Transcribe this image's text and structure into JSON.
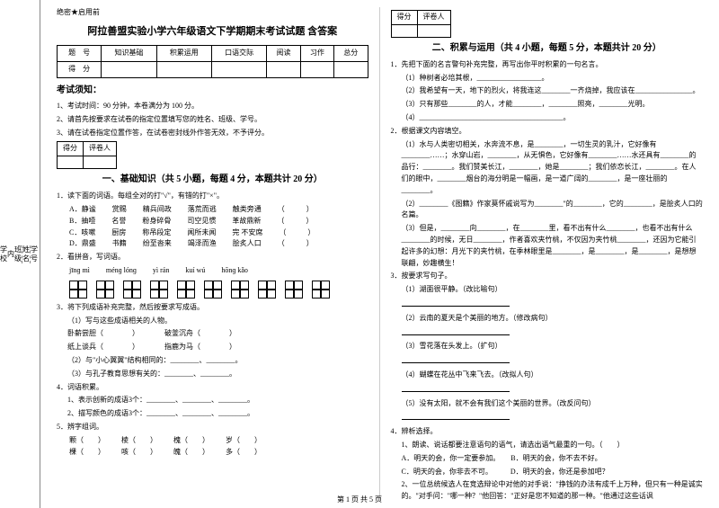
{
  "sidebar": {
    "items": [
      {
        "label1": "学号",
        "label2": ""
      },
      {
        "label1": "姓名",
        "label2": ""
      },
      {
        "label1": "班级",
        "label2": ""
      },
      {
        "label1": "",
        "label2": "内"
      },
      {
        "label1": "学校",
        "label2": ""
      },
      {
        "label1": "",
        "label2": "线"
      },
      {
        "label1": "",
        "label2": "封"
      },
      {
        "label1": "乡镇(街道)",
        "label2": ""
      }
    ]
  },
  "left": {
    "secret": "绝密★启用前",
    "title": "阿拉善盟实验小学六年级语文下学期期末考试试题 含答案",
    "scoreTable": {
      "h0": "题　号",
      "h1": "知识基础",
      "h2": "积累运用",
      "h3": "口语交际",
      "h4": "阅读",
      "h5": "习作",
      "h6": "总分",
      "r0": "得　分"
    },
    "noticeTitle": "考试须知：",
    "notices": [
      "1、考试时间：90 分钟，本卷满分为 100 分。",
      "2、请首先按要求在试卷的指定位置填写您的姓名、班级、学号。",
      "3、请在试卷指定位置作答，在试卷密封线外作答无效，不予评分。"
    ],
    "miniTable": {
      "c0": "得分",
      "c1": "评卷人"
    },
    "section1": "一、基础知识（共 5 小题，每题 4 分，本题共计 20 分）",
    "q1": "1．读下面的词语。每组全对的打\"√\"，有错的打\"×\"。",
    "q1rows": [
      [
        "A．静谧",
        "赏赐",
        "精兵间政",
        "落荒而逃",
        "触类旁通",
        "（　　　）"
      ],
      [
        "B．抽噎",
        "名誉",
        "粉身碎骨",
        "司空见惯",
        "革故鼎新",
        "（　　　）"
      ],
      [
        "C．咳嗽",
        "厨房",
        "称吊段定",
        "闻所未闻",
        "完 不安席",
        "（　　　）"
      ],
      [
        "D．鼎盛",
        "书籍",
        "纷至沓来",
        "竭泽而渔",
        "脍炙人口",
        "（　　　）"
      ]
    ],
    "q2": "2．看拼音，写词语。",
    "pinyin": [
      "jīnɡ  mì",
      "ménɡ  lónɡ",
      "yì  rán",
      "kuí  wú",
      "hōnɡ  kǎo"
    ],
    "q3": "3．将下列成语补充完整，然后按要求写成语。",
    "q3a": "（1）写与这些成语相关的人物。",
    "q3b1": "卧薪尝胆（　　　　）　　　　破釜沉舟（　　　　）",
    "q3b2": "纸上谈兵（　　　　）　　　　指鹿为马（　　　　）",
    "q3c": "（2）与\"小心翼翼\"结构相同的：________、________。",
    "q3d": "（3）与孔子教育思想有关的：________、________。",
    "q4": "4．词语积累。",
    "q4a": "1、表示创新的成语3个：________、________、________。",
    "q4b": "2、描写颜色的成语3个：________、________、________。",
    "q5": "5．辨字组词。",
    "q5rows": [
      [
        "颗（　　）",
        "棱（　　）",
        "槐（　　）",
        "岁（　　）"
      ],
      [
        "棵（　　）",
        "咳（　　）",
        "魄（　　）",
        "多（　　）"
      ]
    ]
  },
  "right": {
    "miniTable": {
      "c0": "得分",
      "c1": "评卷人"
    },
    "section2": "二、积累与运用（共 4 小题，每题 5 分，本题共计 20 分）",
    "q1": "1．先把下面的名言警句补充完整，再写出你平时积累的一句名言。",
    "q1a": "（1）种树者必培其根，__________________。",
    "q1b": "（2）我希望有一天，地下的烈火，将我连这________一齐烧掉，我应该在________________。",
    "q1c": "（3）只有那些________的人，才能________，________照亮，________光明。",
    "q1d": "（4）________________________________________。",
    "q2": "2．根据课文内容填空。",
    "q2a": "（1）水与人类密切相关，水奔流不息，是________，一切生灵的乳汁，它好像有________……；水穿山岩，________，从无惧色，它好像有________……水还具有________的品行：________。我们赞美长江，________，她是________；我们依恋长江，________。在人们的眼中，________烟台的海分明是一幅画，是一道广阔的________，是一座壮丽的________。",
    "q2b": "（2）________《图籍》作家莫怀戚说写为________\"的________，它的________，是脍炙人口的名篇。",
    "q2c": "（3）但是，________向________，在________里，看不出有什么________，也看不出有什么________的时候，无日________，作者喜欢夹竹桃，不仅因为夹竹桃________，还因为它能引起许多的幻想：月光下的夹竹桃，在季林眼里是________，是________，是________，是想想联翩，妙趣横生！",
    "q3": "3．按要求写句子。",
    "q3a": "（1）湖面很平静。（改比喻句）",
    "q3b": "（2）云南的夏天是个美丽的地方。（修改病句）",
    "q3c": "（3）雪花落在头发上。（扩句）",
    "q3d": "（4）蝴蝶在花丛中飞来飞去。（改拟人句）",
    "q3e": "（5）没有太阳，就不会有我们这个美丽的世界。（改反问句）",
    "q4": "4．辨析选择。",
    "q4a": "1、朗读、说话都要注意语句的语气，请选出语气最重的一句。（　　）",
    "q4b": "A．明天的会，你一定要参加。　　B．明天的会，你不去不好。",
    "q4c": "C．明天的会，你非去不可。　　　D．明天的会，你还是参加吧？",
    "q4d": "2、一位总统候选人在竞选辩论中对他的对手说：\"挣钱的办法有成千上万种，但只有一种是诚实的。\"对手问：\"哪一种？\"他回答：\"正好是您不知道的那一种。\"他通过这些话讽"
  },
  "footer": "第 1 页 共 5 页"
}
